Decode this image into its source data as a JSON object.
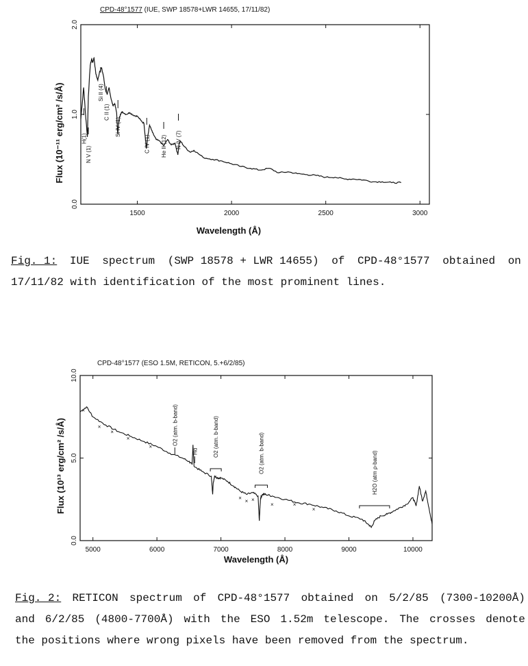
{
  "chart_data": [
    {
      "type": "line",
      "title": "CPD-48°1577 (IUE, SWP 18578+LWR 14655, 17/11/82)",
      "title_underlined": "CPD-48°1577",
      "title_rest": "(IUE, SWP 18578+LWR 14655, 17/11/82)",
      "xlabel": "Wavelength (Å)",
      "ylabel": "Flux (10⁻¹¹ erg/cm² /s/Å)",
      "xlim": [
        1200,
        3050
      ],
      "ylim": [
        0,
        2.0
      ],
      "x_ticks": [
        1500,
        2000,
        2500,
        3000
      ],
      "y_ticks": [
        "0.0",
        "1.0",
        "2.0"
      ],
      "grid": false,
      "series": [
        {
          "x": [
            1200,
            1215,
            1225,
            1235,
            1240,
            1250,
            1258,
            1263,
            1270,
            1280,
            1290,
            1300,
            1310,
            1320,
            1330,
            1340,
            1350,
            1360,
            1370,
            1380,
            1390,
            1396,
            1403,
            1410,
            1420,
            1440,
            1460,
            1480,
            1500,
            1520,
            1535,
            1548,
            1555,
            1565,
            1580,
            1600,
            1620,
            1640,
            1660,
            1680,
            1700,
            1715,
            1722,
            1730,
            1750,
            1780,
            1800,
            1850,
            1900,
            1950,
            2000,
            2050,
            2100,
            2150,
            2200,
            2250,
            2300,
            2350,
            2400,
            2450,
            2500,
            2550,
            2600,
            2650,
            2700,
            2750,
            2800,
            2850,
            2900
          ],
          "y": [
            0.95,
            1.3,
            1.0,
            0.75,
            1.2,
            1.55,
            1.62,
            1.58,
            1.63,
            1.45,
            1.38,
            1.48,
            1.52,
            1.43,
            1.28,
            1.22,
            1.3,
            1.18,
            1.1,
            1.12,
            1.02,
            0.78,
            0.95,
            1.0,
            1.03,
            1.0,
            1.02,
            0.99,
            0.98,
            0.93,
            0.9,
            0.62,
            0.75,
            0.88,
            0.8,
            0.72,
            0.7,
            0.65,
            0.72,
            0.66,
            0.68,
            0.55,
            0.68,
            0.7,
            0.64,
            0.58,
            0.6,
            0.52,
            0.5,
            0.48,
            0.45,
            0.42,
            0.4,
            0.38,
            0.4,
            0.35,
            0.36,
            0.34,
            0.33,
            0.32,
            0.3,
            0.3,
            0.28,
            0.28,
            0.27,
            0.25,
            0.25,
            0.24,
            0.24
          ]
        }
      ],
      "annotations": [
        {
          "text": "N V (1)",
          "x": 1240
        },
        {
          "text": "H(1)",
          "x": 1216
        },
        {
          "text": "Si II (4)",
          "x": 1305
        },
        {
          "text": "C II (1)",
          "x": 1336
        },
        {
          "text": "Si IV (1)",
          "x": 1397
        },
        {
          "text": "C IV (1)",
          "x": 1550
        },
        {
          "text": "He II (12)",
          "x": 1640
        },
        {
          "text": "N IV (7)",
          "x": 1718
        }
      ]
    },
    {
      "type": "line",
      "title": "CPD-48°1577 (ESO 1.5M, RETICON, 5.+6/2/85)",
      "xlabel": "Wavelength (Å)",
      "ylabel": "Flux (10¹³ erg/cm² /s/Å)",
      "xlim": [
        4800,
        10300
      ],
      "ylim": [
        0,
        10.0
      ],
      "x_ticks": [
        5000,
        6000,
        7000,
        8000,
        9000,
        10000
      ],
      "y_ticks": [
        "0.0",
        "5.0",
        "10.0"
      ],
      "grid": false,
      "series": [
        {
          "x": [
            4800,
            4900,
            5000,
            5200,
            5400,
            5600,
            5800,
            6000,
            6200,
            6400,
            6500,
            6550,
            6563,
            6580,
            6700,
            6850,
            6870,
            6880,
            6900,
            6950,
            7000,
            7100,
            7200,
            7300,
            7400,
            7500,
            7580,
            7600,
            7610,
            7620,
            7650,
            7700,
            7800,
            8000,
            8200,
            8400,
            8600,
            8800,
            9000,
            9200,
            9300,
            9350,
            9400,
            9500,
            9600,
            9700,
            9800,
            9900,
            10000,
            10050,
            10100,
            10150,
            10200,
            10250,
            10300
          ],
          "y": [
            7.8,
            8.1,
            7.5,
            7.0,
            6.6,
            6.3,
            6.0,
            5.7,
            5.3,
            5.0,
            4.8,
            4.6,
            5.8,
            4.5,
            4.2,
            3.9,
            2.8,
            3.5,
            3.9,
            3.8,
            3.8,
            3.6,
            3.3,
            3.0,
            2.8,
            2.9,
            2.7,
            1.2,
            2.0,
            2.6,
            2.8,
            2.8,
            2.7,
            2.5,
            2.3,
            2.2,
            2.0,
            1.8,
            1.5,
            1.3,
            1.0,
            0.8,
            1.2,
            1.5,
            1.6,
            1.8,
            2.0,
            2.2,
            2.6,
            2.1,
            3.3,
            2.4,
            3.0,
            2.0,
            1.0
          ]
        }
      ],
      "crosses": [
        {
          "x": 4850,
          "y": 7.9
        },
        {
          "x": 5100,
          "y": 6.9
        },
        {
          "x": 5300,
          "y": 6.6
        },
        {
          "x": 5550,
          "y": 6.2
        },
        {
          "x": 5900,
          "y": 5.7
        },
        {
          "x": 7300,
          "y": 2.6
        },
        {
          "x": 7400,
          "y": 2.4
        },
        {
          "x": 7500,
          "y": 2.5
        },
        {
          "x": 7800,
          "y": 2.2
        },
        {
          "x": 8150,
          "y": 2.2
        },
        {
          "x": 8450,
          "y": 1.9
        }
      ],
      "annotations": [
        {
          "text": "O2 (atm. b-band)",
          "x": 6280
        },
        {
          "text": "Hα",
          "x": 6590
        },
        {
          "text": "O2 (atm. b-band)",
          "x": 6920
        },
        {
          "text": "O2 (atm. b-band)",
          "x": 7630
        },
        {
          "text": "H2O (atm ρ-band)",
          "x": 9400
        }
      ]
    }
  ],
  "captions": {
    "fig1": {
      "label": "Fig. 1:",
      "line1_parts": [
        "IUE",
        "spectrum",
        "(SWP 18578 + LWR 14655)",
        "of",
        "CPD-48°1577",
        "obtained",
        "on"
      ],
      "line2": "17/11/82 with identification of the most prominent lines."
    },
    "fig2": {
      "label": "Fig. 2:",
      "line1_parts": [
        "RETICON",
        "spectrum",
        "of",
        "CPD-48°1577",
        "obtained",
        "on",
        "5/2/85",
        "(7300-10200Å)"
      ],
      "line2_parts": [
        "and",
        "6/2/85",
        "(4800-7700Å)",
        "with",
        "the",
        "ESO",
        "1.52m",
        "telescope.",
        "The",
        "crosses",
        "denote"
      ],
      "line3": "the positions where wrong pixels have been removed from the spectrum."
    }
  }
}
